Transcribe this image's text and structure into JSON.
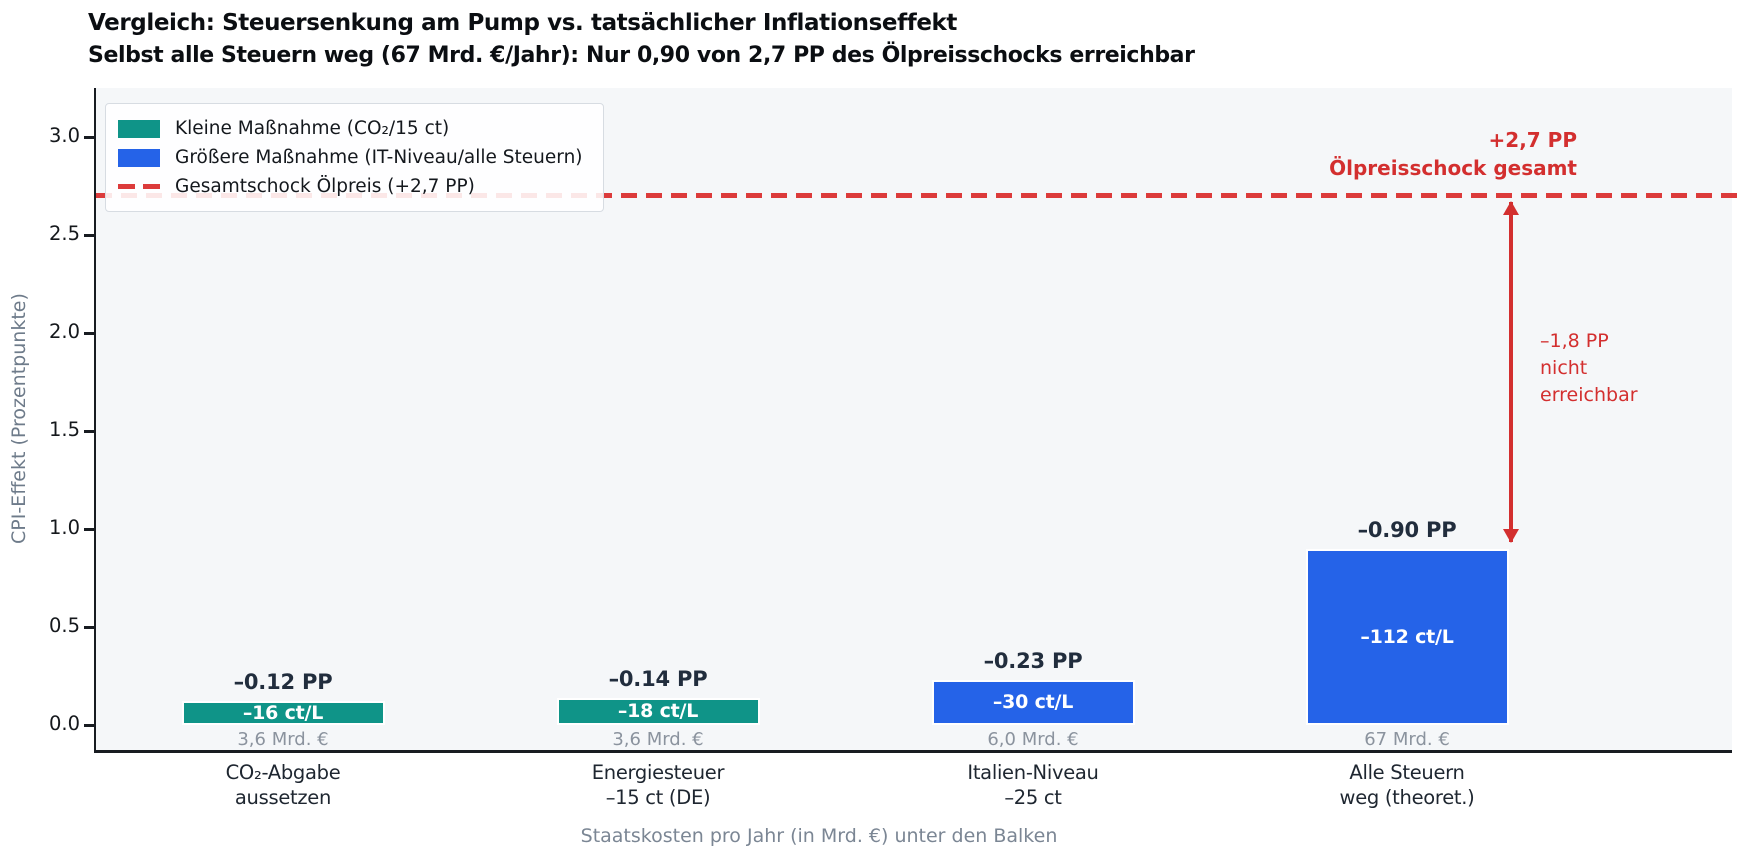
{
  "chart_data": {
    "type": "bar",
    "title": "Vergleich: Steuersenkung am Pump vs. tatsächlicher Inflationseffekt",
    "subtitle": "Selbst alle Steuern weg (67 Mrd. €/Jahr): Nur 0,90 von 2,7 PP des Ölpreisschocks erreichbar",
    "ylabel": "CPI-Effekt (Prozentpunkte)",
    "xlabel": "Staatskosten pro Jahr (in Mrd. €) unter den Balken",
    "ylim": [
      -0.13,
      3.25
    ],
    "ytick_labels": [
      "0.0",
      "0.5",
      "1.0",
      "1.5",
      "2.0",
      "2.5",
      "3.0"
    ],
    "grid": false,
    "legend_position": "upper left",
    "categories": [
      [
        "CO₂-Abgabe",
        "aussetzen"
      ],
      [
        "Energiesteuer",
        "–15 ct (DE)"
      ],
      [
        "Italien-Niveau",
        "–25 ct"
      ],
      [
        "Alle Steuern",
        "weg (theoret.)"
      ]
    ],
    "bars": [
      {
        "value": 0.12,
        "group": "small",
        "pp_label": "–0.12 PP",
        "rate_label": "–16 ct/L",
        "cost_label": "3,6 Mrd. €"
      },
      {
        "value": 0.14,
        "group": "small",
        "pp_label": "–0.14 PP",
        "rate_label": "–18 ct/L",
        "cost_label": "3,6 Mrd. €"
      },
      {
        "value": 0.23,
        "group": "large",
        "pp_label": "–0.23 PP",
        "rate_label": "–30 ct/L",
        "cost_label": "6,0 Mrd. €"
      },
      {
        "value": 0.9,
        "group": "large",
        "pp_label": "–0.90 PP",
        "rate_label": "–112 ct/L",
        "cost_label": "67 Mrd. €"
      }
    ],
    "reference_line": {
      "value": 2.7,
      "label_value": "+2,7 PP",
      "label_text": "Ölpreisschock gesamt"
    },
    "gap_annotation": {
      "from": 0.9,
      "to": 2.7,
      "text": "–1,8 PP\nnicht\nerreichbar"
    },
    "legend": [
      {
        "label": "Kleine Maßnahme (CO₂/15 ct)",
        "swatch": "small"
      },
      {
        "label": "Größere Maßnahme (IT-Niveau/alle Steuern)",
        "swatch": "large"
      },
      {
        "label": "Gesamtschock Ölpreis (+2,7 PP)",
        "swatch": "refline"
      }
    ],
    "colors": {
      "small": "#0f9488",
      "large": "#2563e8",
      "reference_line": "#dc3b3b",
      "reference_text": "#d32f2f"
    }
  }
}
